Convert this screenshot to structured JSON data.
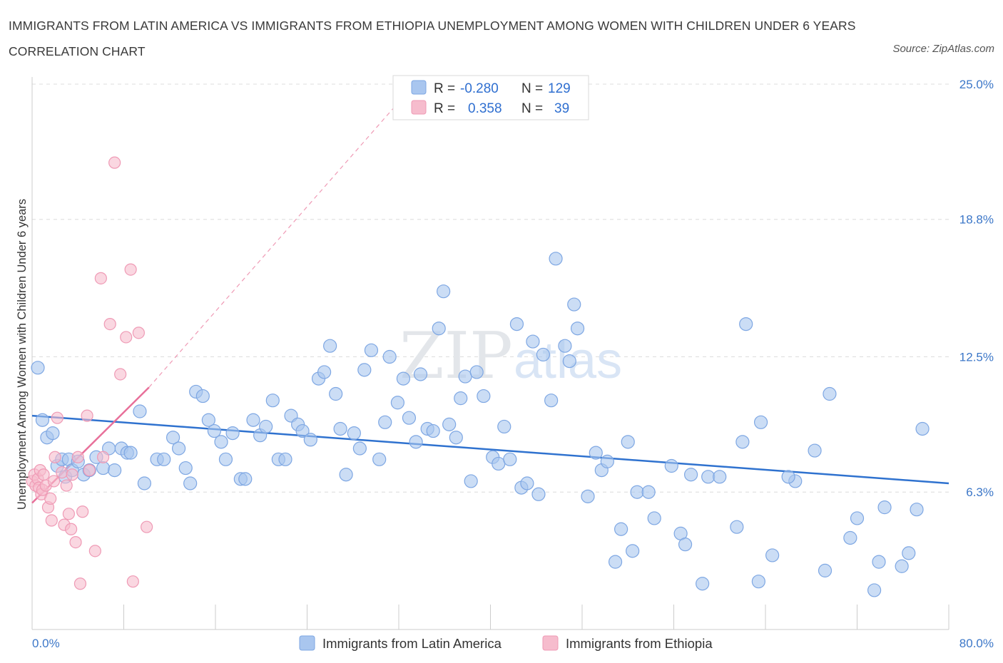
{
  "title": "IMMIGRANTS FROM LATIN AMERICA VS IMMIGRANTS FROM ETHIOPIA UNEMPLOYMENT AMONG WOMEN WITH CHILDREN UNDER 6 YEARS CORRELATION CHART",
  "source": "Source: ZipAtlas.com",
  "watermark": {
    "part1": "ZIP",
    "part2": "atlas"
  },
  "colors": {
    "blue_fill": "#a9c6ef",
    "blue_stroke": "#7ea7e3",
    "blue_line": "#2f72cf",
    "pink_fill": "#f6bccd",
    "pink_stroke": "#ef9ab5",
    "pink_line": "#e8709a",
    "grid": "#dcdcdc",
    "axis": "#cccccc"
  },
  "legend": {
    "rows": [
      {
        "r_label": "R =",
        "r_value": "-0.280",
        "n_label": "N =",
        "n_value": "129"
      },
      {
        "r_label": "R =",
        "r_value": "0.358",
        "n_label": "N =",
        "n_value": "39"
      }
    ]
  },
  "chart_data": {
    "type": "scatter",
    "title": "IMMIGRANTS FROM LATIN AMERICA VS IMMIGRANTS FROM ETHIOPIA UNEMPLOYMENT AMONG WOMEN WITH CHILDREN UNDER 6 YEARS CORRELATION CHART",
    "xlabel": "",
    "ylabel": "Unemployment Among Women with Children Under 6 years",
    "xlim": [
      0,
      80
    ],
    "ylim": [
      0,
      25
    ],
    "x_tick_labels": [
      "0.0%",
      "80.0%"
    ],
    "y_ticks": [
      6.3,
      12.5,
      18.8,
      25.0
    ],
    "y_tick_labels": [
      "6.3%",
      "12.5%",
      "18.8%",
      "25.0%"
    ],
    "grid": true,
    "legend_placement": "top-center",
    "series": [
      {
        "name": "Immigrants from Latin America",
        "color": "#a9c6ef",
        "trend": {
          "x": [
            0,
            80
          ],
          "y": [
            9.8,
            6.7
          ]
        },
        "points": [
          [
            0.5,
            12.0
          ],
          [
            0.9,
            9.6
          ],
          [
            1.3,
            8.8
          ],
          [
            1.8,
            9.0
          ],
          [
            2.2,
            7.5
          ],
          [
            2.6,
            7.8
          ],
          [
            2.9,
            7.0
          ],
          [
            3.2,
            7.8
          ],
          [
            3.5,
            7.3
          ],
          [
            4.0,
            7.7
          ],
          [
            4.5,
            7.1
          ],
          [
            5.0,
            7.3
          ],
          [
            5.6,
            7.9
          ],
          [
            6.2,
            7.4
          ],
          [
            6.7,
            8.3
          ],
          [
            7.2,
            7.3
          ],
          [
            7.8,
            8.3
          ],
          [
            8.3,
            8.1
          ],
          [
            8.6,
            8.1
          ],
          [
            9.4,
            10.0
          ],
          [
            9.8,
            6.7
          ],
          [
            10.9,
            7.8
          ],
          [
            11.5,
            7.8
          ],
          [
            12.3,
            8.8
          ],
          [
            12.8,
            8.3
          ],
          [
            13.4,
            7.4
          ],
          [
            13.8,
            6.7
          ],
          [
            14.3,
            10.9
          ],
          [
            14.9,
            10.7
          ],
          [
            15.4,
            9.6
          ],
          [
            15.9,
            9.1
          ],
          [
            16.5,
            8.6
          ],
          [
            16.9,
            7.8
          ],
          [
            17.5,
            9.0
          ],
          [
            18.2,
            6.9
          ],
          [
            18.6,
            6.9
          ],
          [
            19.3,
            9.6
          ],
          [
            19.9,
            8.9
          ],
          [
            20.4,
            9.3
          ],
          [
            21.0,
            10.5
          ],
          [
            21.5,
            7.8
          ],
          [
            22.1,
            7.8
          ],
          [
            22.6,
            9.8
          ],
          [
            23.2,
            9.4
          ],
          [
            23.6,
            9.1
          ],
          [
            24.3,
            8.7
          ],
          [
            25.0,
            11.5
          ],
          [
            25.5,
            11.8
          ],
          [
            26.0,
            13.0
          ],
          [
            26.5,
            10.8
          ],
          [
            26.9,
            9.2
          ],
          [
            27.4,
            7.1
          ],
          [
            28.1,
            9.0
          ],
          [
            28.6,
            8.3
          ],
          [
            29.0,
            11.9
          ],
          [
            29.6,
            12.8
          ],
          [
            30.3,
            7.8
          ],
          [
            30.8,
            9.5
          ],
          [
            31.2,
            12.5
          ],
          [
            31.9,
            10.4
          ],
          [
            32.4,
            11.5
          ],
          [
            32.9,
            9.7
          ],
          [
            33.5,
            8.6
          ],
          [
            33.9,
            11.7
          ],
          [
            34.5,
            9.2
          ],
          [
            35.0,
            9.1
          ],
          [
            35.5,
            13.8
          ],
          [
            35.9,
            15.5
          ],
          [
            36.4,
            9.4
          ],
          [
            37.0,
            8.8
          ],
          [
            37.4,
            10.6
          ],
          [
            37.8,
            11.6
          ],
          [
            38.3,
            6.8
          ],
          [
            38.8,
            11.8
          ],
          [
            39.4,
            10.7
          ],
          [
            40.2,
            7.9
          ],
          [
            40.7,
            7.6
          ],
          [
            41.2,
            9.3
          ],
          [
            41.7,
            7.8
          ],
          [
            42.3,
            14.0
          ],
          [
            42.7,
            6.5
          ],
          [
            43.2,
            6.7
          ],
          [
            43.7,
            13.2
          ],
          [
            44.2,
            6.2
          ],
          [
            44.6,
            12.6
          ],
          [
            45.3,
            10.5
          ],
          [
            45.7,
            17.0
          ],
          [
            46.5,
            13.0
          ],
          [
            46.9,
            12.3
          ],
          [
            47.3,
            14.9
          ],
          [
            47.6,
            13.8
          ],
          [
            48.5,
            6.1
          ],
          [
            49.2,
            8.1
          ],
          [
            49.7,
            7.3
          ],
          [
            50.2,
            7.7
          ],
          [
            50.9,
            3.1
          ],
          [
            51.4,
            4.6
          ],
          [
            52.0,
            8.6
          ],
          [
            52.4,
            3.6
          ],
          [
            52.8,
            6.3
          ],
          [
            53.8,
            6.3
          ],
          [
            54.3,
            5.1
          ],
          [
            55.8,
            7.5
          ],
          [
            56.6,
            4.4
          ],
          [
            57.0,
            3.9
          ],
          [
            58.5,
            2.1
          ],
          [
            59.0,
            7.0
          ],
          [
            60.0,
            7.0
          ],
          [
            61.5,
            4.7
          ],
          [
            62.0,
            8.6
          ],
          [
            62.3,
            14.0
          ],
          [
            63.4,
            2.2
          ],
          [
            63.6,
            9.5
          ],
          [
            64.6,
            3.4
          ],
          [
            66.6,
            6.8
          ],
          [
            68.3,
            8.2
          ],
          [
            69.2,
            2.7
          ],
          [
            69.6,
            10.8
          ],
          [
            71.4,
            4.2
          ],
          [
            72.0,
            5.1
          ],
          [
            73.5,
            1.8
          ],
          [
            73.9,
            3.1
          ],
          [
            74.4,
            5.6
          ],
          [
            75.9,
            2.9
          ],
          [
            76.5,
            3.5
          ],
          [
            77.2,
            5.5
          ],
          [
            77.7,
            9.2
          ],
          [
            66.0,
            7.0
          ],
          [
            57.5,
            7.1
          ]
        ]
      },
      {
        "name": "Immigrants from Ethiopia",
        "color": "#f6bccd",
        "trend": {
          "x": [
            0,
            10.2
          ],
          "y": [
            5.8,
            11.1
          ],
          "dashed_extension": {
            "x": [
              10.2,
              31.7
            ],
            "y": [
              11.1,
              24.0
            ]
          }
        },
        "points": [
          [
            0.0,
            6.8
          ],
          [
            0.2,
            7.1
          ],
          [
            0.3,
            6.6
          ],
          [
            0.5,
            6.9
          ],
          [
            0.6,
            6.5
          ],
          [
            0.7,
            7.3
          ],
          [
            0.8,
            6.2
          ],
          [
            0.9,
            6.4
          ],
          [
            1.0,
            7.1
          ],
          [
            1.2,
            6.6
          ],
          [
            1.4,
            5.6
          ],
          [
            1.6,
            6.0
          ],
          [
            1.7,
            5.0
          ],
          [
            1.9,
            6.8
          ],
          [
            2.0,
            7.9
          ],
          [
            2.2,
            9.7
          ],
          [
            2.6,
            7.2
          ],
          [
            2.8,
            4.8
          ],
          [
            3.0,
            6.6
          ],
          [
            3.2,
            5.3
          ],
          [
            3.4,
            4.6
          ],
          [
            3.5,
            7.1
          ],
          [
            3.8,
            4.0
          ],
          [
            4.0,
            7.9
          ],
          [
            4.2,
            2.1
          ],
          [
            4.4,
            5.4
          ],
          [
            4.8,
            9.8
          ],
          [
            5.0,
            7.3
          ],
          [
            5.5,
            3.6
          ],
          [
            6.0,
            16.1
          ],
          [
            6.2,
            7.9
          ],
          [
            6.8,
            14.0
          ],
          [
            7.2,
            21.4
          ],
          [
            7.7,
            11.7
          ],
          [
            8.2,
            13.4
          ],
          [
            8.6,
            16.5
          ],
          [
            8.8,
            2.2
          ],
          [
            9.3,
            13.6
          ],
          [
            10.0,
            4.7
          ]
        ]
      }
    ]
  }
}
